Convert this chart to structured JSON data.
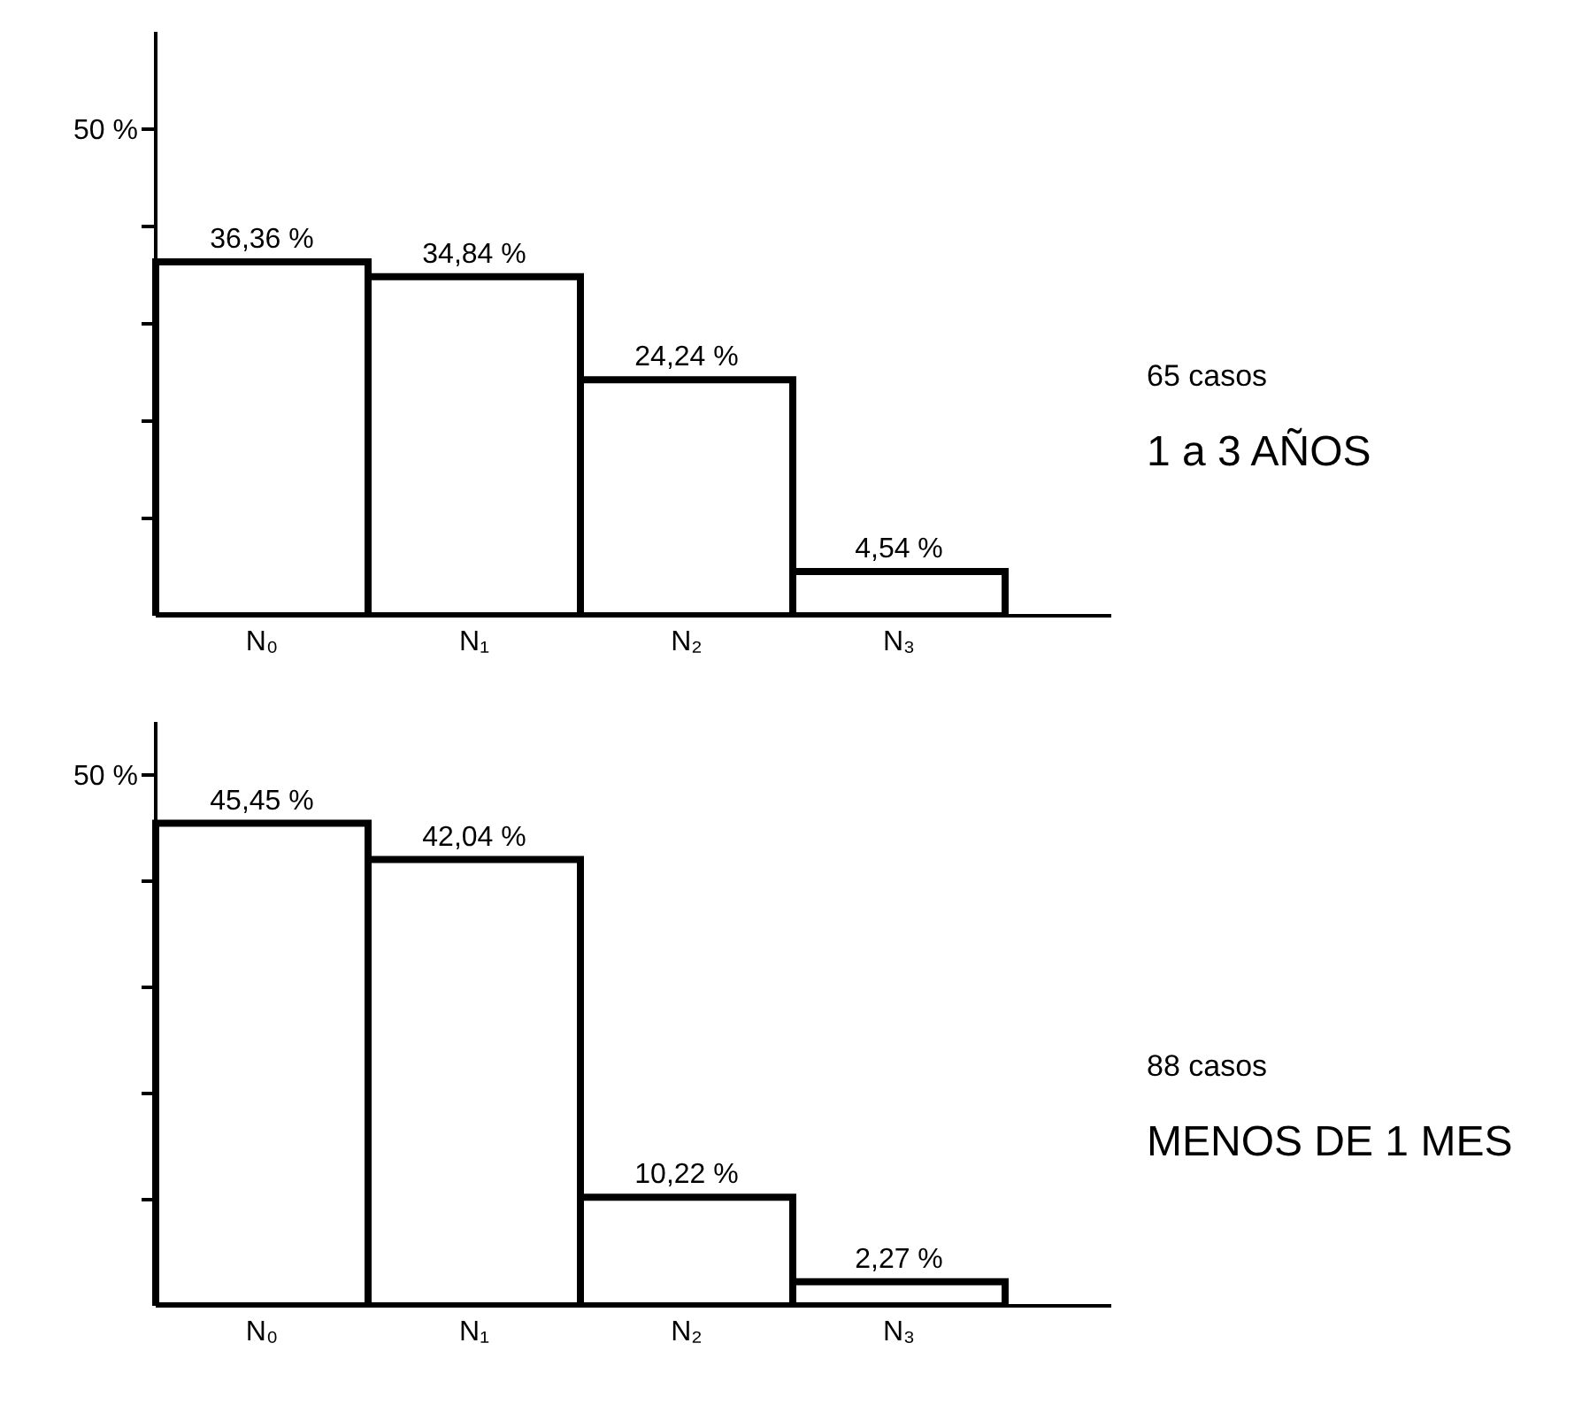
{
  "chart_data": [
    {
      "type": "bar",
      "annotations": [
        "65 casos",
        "1 a 3 AÑOS"
      ],
      "categories": [
        "N₀",
        "N₁",
        "N₂",
        "N₃"
      ],
      "values": [
        36.36,
        34.84,
        24.24,
        4.54
      ],
      "color": "#ffffff",
      "value_labels": [
        "36,36 %",
        "34,84 %",
        "24,24 %",
        "4,54 %"
      ],
      "ylim": [
        0,
        60
      ],
      "yticks": [
        {
          "value": 10,
          "label": null
        },
        {
          "value": 20,
          "label": null
        },
        {
          "value": 30,
          "label": null
        },
        {
          "value": 40,
          "label": null
        },
        {
          "value": 50,
          "label": "50 %"
        }
      ]
    },
    {
      "type": "bar",
      "annotations": [
        "88 casos",
        "MENOS DE 1 MES"
      ],
      "categories": [
        "N₀",
        "N₁",
        "N₂",
        "N₃"
      ],
      "values": [
        45.45,
        42.04,
        10.22,
        2.27
      ],
      "color": "#ffffff",
      "value_labels": [
        "45,45 %",
        "42,04 %",
        "10,22 %",
        "2,27 %"
      ],
      "ylim": [
        0,
        55
      ],
      "yticks": [
        {
          "value": 10,
          "label": null
        },
        {
          "value": 20,
          "label": null
        },
        {
          "value": 30,
          "label": null
        },
        {
          "value": 40,
          "label": null
        },
        {
          "value": 50,
          "label": "50 %"
        }
      ]
    }
  ]
}
